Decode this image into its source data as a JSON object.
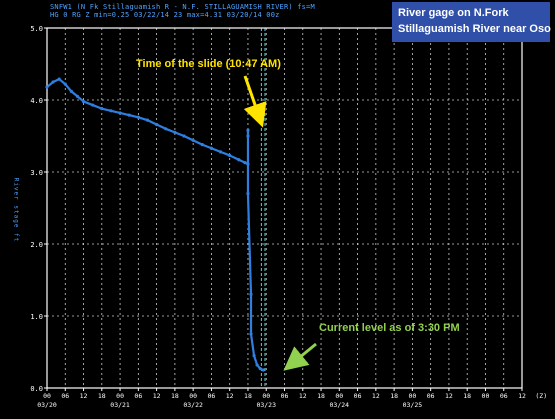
{
  "header": {
    "line1": "SNFW1 (N Fk Stillaguamish R - N.F. STILLAGUAMISH RIVER) fs=M",
    "line2": "HG 0 RG Z min=0.25 03/22/14 23 max=4.31 03/20/14 00z"
  },
  "title_box": {
    "line1": "River gage on N.Fork",
    "line2": "Stillaguamish  River near Oso"
  },
  "annotations": {
    "slide": "Time of the slide (10:47 AM)",
    "current": "Current  level as of 3:30 PM"
  },
  "colors": {
    "series": "#2f7fe0",
    "grid": "#ffffff",
    "slide_arrow": "#ffe400",
    "current_arrow": "#92d050",
    "current_line": "#5fd0d0",
    "title_box": "#2f4fa8"
  },
  "chart_data": {
    "type": "line",
    "ylabel": "River stage ft",
    "ylim": [
      0,
      5
    ],
    "yticks": [
      "0.0",
      "1.0",
      "2.0",
      "3.0",
      "4.0",
      "5.0"
    ],
    "xlim": [
      "03/20 00",
      "03/26 12"
    ],
    "x_hour_labels": [
      "00",
      "06",
      "12",
      "18",
      "00",
      "06",
      "12",
      "18",
      "00",
      "06",
      "12",
      "18",
      "00",
      "06",
      "12",
      "18",
      "00",
      "06",
      "12",
      "18",
      "00",
      "06",
      "12",
      "18",
      "00",
      "06",
      "12",
      "(Z)"
    ],
    "x_date_labels": [
      "03/20",
      "03/21",
      "03/22",
      "03/23",
      "03/24",
      "03/25"
    ],
    "grid": true,
    "current_marker": "03/22 23",
    "series": [
      {
        "values": [
          [
            "03/20 00",
            4.18
          ],
          [
            "03/20 02",
            4.25
          ],
          [
            "03/20 04",
            4.29
          ],
          [
            "03/20 06",
            4.22
          ],
          [
            "03/20 08",
            4.12
          ],
          [
            "03/20 10",
            4.05
          ],
          [
            "03/20 12",
            3.98
          ],
          [
            "03/20 15",
            3.93
          ],
          [
            "03/20 18",
            3.88
          ],
          [
            "03/20 21",
            3.85
          ],
          [
            "03/21 00",
            3.82
          ],
          [
            "03/21 03",
            3.79
          ],
          [
            "03/21 06",
            3.76
          ],
          [
            "03/21 09",
            3.72
          ],
          [
            "03/21 12",
            3.66
          ],
          [
            "03/21 15",
            3.6
          ],
          [
            "03/21 18",
            3.55
          ],
          [
            "03/21 21",
            3.5
          ],
          [
            "03/22 00",
            3.44
          ],
          [
            "03/22 03",
            3.38
          ],
          [
            "03/22 06",
            3.33
          ],
          [
            "03/22 09",
            3.28
          ],
          [
            "03/22 12",
            3.23
          ],
          [
            "03/22 15",
            3.17
          ],
          [
            "03/22 17",
            3.13
          ],
          [
            "03/22 18",
            3.11
          ],
          [
            "03/22 18",
            3.58
          ],
          [
            "03/22 18",
            3.5
          ],
          [
            "03/22 18",
            2.7
          ],
          [
            "03/22 19",
            1.3
          ],
          [
            "03/22 19",
            0.75
          ],
          [
            "03/22 20",
            0.45
          ],
          [
            "03/22 21",
            0.32
          ],
          [
            "03/22 22",
            0.27
          ],
          [
            "03/22 23",
            0.25
          ]
        ]
      }
    ]
  }
}
